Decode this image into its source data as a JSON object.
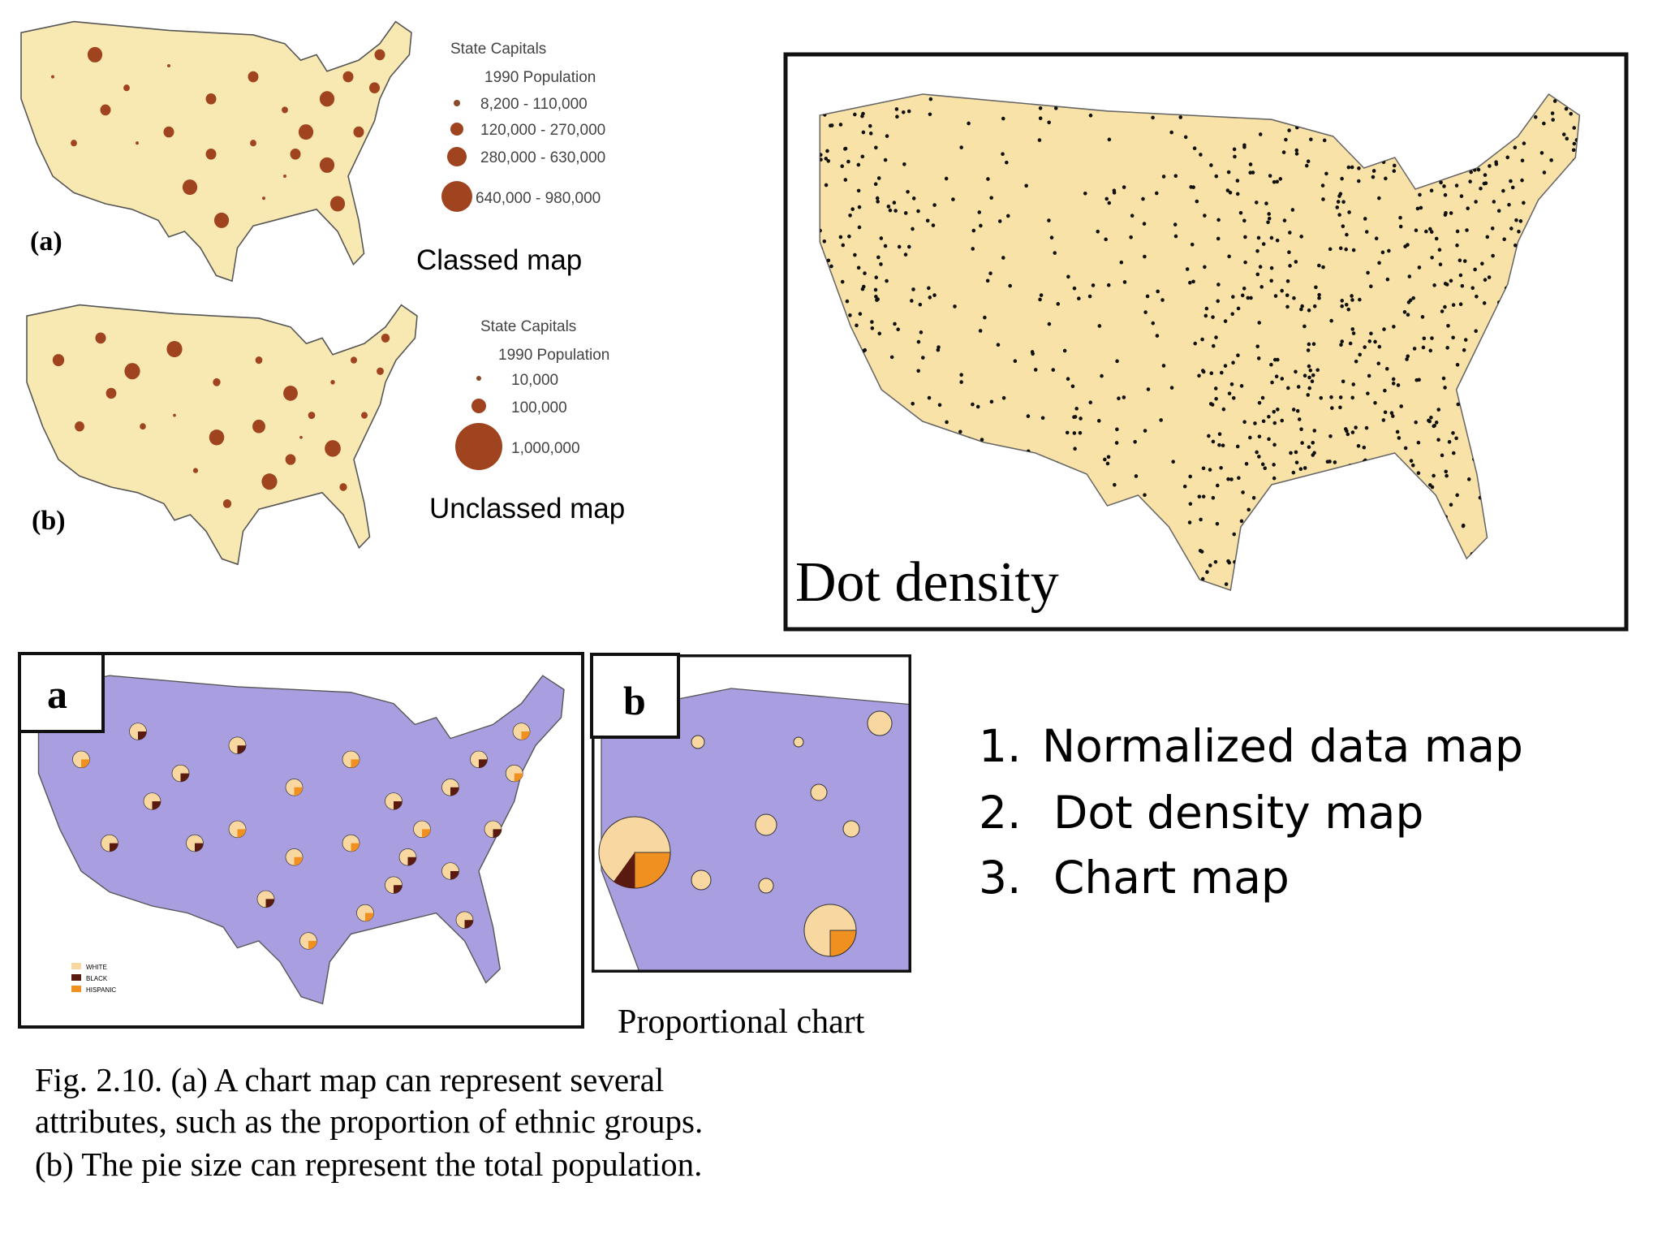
{
  "classed_map": {
    "label": "(a)",
    "caption": "Classed map",
    "legend_title": "State Capitals",
    "legend_subtitle": "1990 Population",
    "classes": [
      "8,200 - 110,000",
      "120,000 - 270,000",
      "280,000 - 630,000",
      "640,000 - 980,000"
    ]
  },
  "unclassed_map": {
    "label": "(b)",
    "caption": "Unclassed map",
    "legend_title": "State Capitals",
    "legend_subtitle": "1990 Population",
    "classes": [
      "10,000",
      "100,000",
      "1,000,000"
    ]
  },
  "dot_density_map": {
    "title": "Dot density"
  },
  "chart_map_a": {
    "label": "a",
    "legend": [
      "WHITE",
      "BLACK",
      "HISPANIC"
    ]
  },
  "chart_map_b": {
    "label": "b",
    "caption": "Proportional chart"
  },
  "figure_caption": [
    "Fig. 2.10. (a) A chart map can represent several",
    "attributes, such as the proportion of ethnic groups.",
    "(b) The pie size can represent the total population."
  ],
  "list": [
    {
      "number": "1.",
      "text": "Normalized data map"
    },
    {
      "number": "2.",
      "text": "Dot density map"
    },
    {
      "number": "3.",
      "text": "Chart map"
    }
  ]
}
